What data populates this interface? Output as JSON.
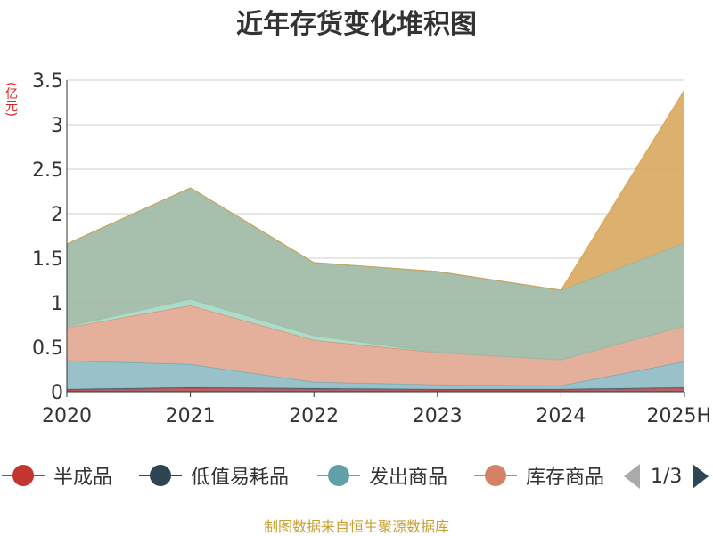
{
  "chart_data": {
    "type": "area",
    "title": "近年存货变化堆积图",
    "unit_label": "(亿元)",
    "categories": [
      "2020",
      "2021",
      "2022",
      "2023",
      "2024",
      "2025H"
    ],
    "ylim": [
      0,
      3.5
    ],
    "yticks": [
      "0",
      "0.5",
      "1",
      "1.5",
      "2",
      "2.5",
      "3",
      "3.5"
    ],
    "grid": true,
    "stacked": true,
    "series": [
      {
        "name": "半成品",
        "color": "#c23531",
        "fill": "#b0545a",
        "values": [
          0.02,
          0.04,
          0.03,
          0.02,
          0.02,
          0.04
        ]
      },
      {
        "name": "低值易耗品",
        "color": "#2f4554",
        "fill": "#6a7f8a",
        "values": [
          0.01,
          0.01,
          0.01,
          0.01,
          0.01,
          0.01
        ]
      },
      {
        "name": "发出商品",
        "color": "#61a0a8",
        "fill": "#8fbcc4",
        "values": [
          0.32,
          0.26,
          0.07,
          0.05,
          0.04,
          0.29
        ]
      },
      {
        "name": "库存商品",
        "color": "#d48265",
        "fill": "#e2a994",
        "values": [
          0.37,
          0.66,
          0.47,
          0.36,
          0.29,
          0.4
        ]
      },
      {
        "name": "",
        "color": "#91c7ae",
        "fill": "#a8d8c4",
        "values": [
          0.01,
          0.07,
          0.05,
          0.0,
          0.0,
          0.0
        ]
      },
      {
        "name": "",
        "color": "#8fb49e",
        "fill": "#9fbaa6",
        "values": [
          0.93,
          1.25,
          0.82,
          0.91,
          0.78,
          0.93
        ]
      },
      {
        "name": "",
        "color": "#d4a04a",
        "fill": "#d9a962",
        "values": [
          0.0,
          0.0,
          0.0,
          0.0,
          0.0,
          1.72
        ]
      }
    ]
  },
  "legend": {
    "page_text": "1/3"
  },
  "source_text": "制图数据来自恒生聚源数据库"
}
